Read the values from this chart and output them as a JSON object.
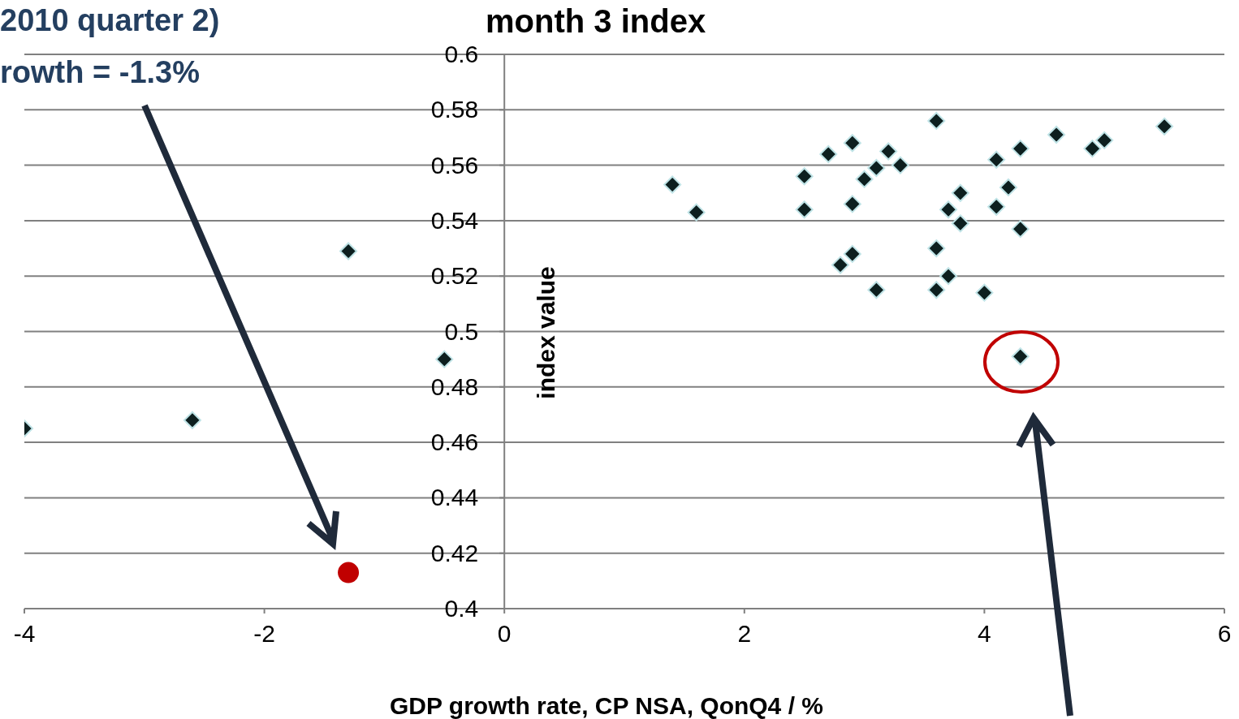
{
  "chart_data": {
    "type": "scatter",
    "title": "month 3 index",
    "xlabel": "GDP growth rate, CP NSA,  QonQ4 / %",
    "ylabel": "index value",
    "annotations": [
      "2010 quarter 2)",
      "rowth = -1.3%"
    ],
    "series": [
      {
        "color": "#0d1f1f",
        "marker": "diamond",
        "x": [
          -4,
          -2.6,
          -1.3,
          -0.5,
          1.4,
          1.6,
          2.5,
          2.5,
          2.7,
          2.9,
          2.9,
          2.8,
          2.9,
          3.0,
          3.1,
          3.2,
          3.3,
          3.1,
          3.6,
          3.6,
          3.6,
          3.7,
          3.7,
          3.8,
          3.8,
          4.0,
          4.1,
          4.1,
          4.2,
          4.3,
          4.3,
          4.3,
          4.6,
          4.9,
          5.0,
          5.5
        ],
        "values": [
          0.465,
          0.468,
          0.529,
          0.49,
          0.553,
          0.543,
          0.556,
          0.544,
          0.564,
          0.568,
          0.546,
          0.524,
          0.528,
          0.555,
          0.559,
          0.565,
          0.56,
          0.515,
          0.576,
          0.53,
          0.515,
          0.544,
          0.52,
          0.55,
          0.539,
          0.514,
          0.562,
          0.545,
          0.552,
          0.566,
          0.537,
          0.491,
          0.571,
          0.566,
          0.569,
          0.574
        ]
      },
      {
        "color": "#c00000",
        "marker": "circle",
        "x": [
          -1.3
        ],
        "values": [
          0.413
        ]
      }
    ],
    "xlim": [
      -4,
      6
    ],
    "xticks": [
      -4,
      -2,
      0,
      2,
      4,
      6
    ],
    "ylim": [
      0.4,
      0.6
    ],
    "yticks": [
      0.4,
      0.42,
      0.44,
      0.46,
      0.48,
      0.5,
      0.52,
      0.54,
      0.56,
      0.58,
      0.6
    ],
    "grid": "y",
    "legend": false
  }
}
